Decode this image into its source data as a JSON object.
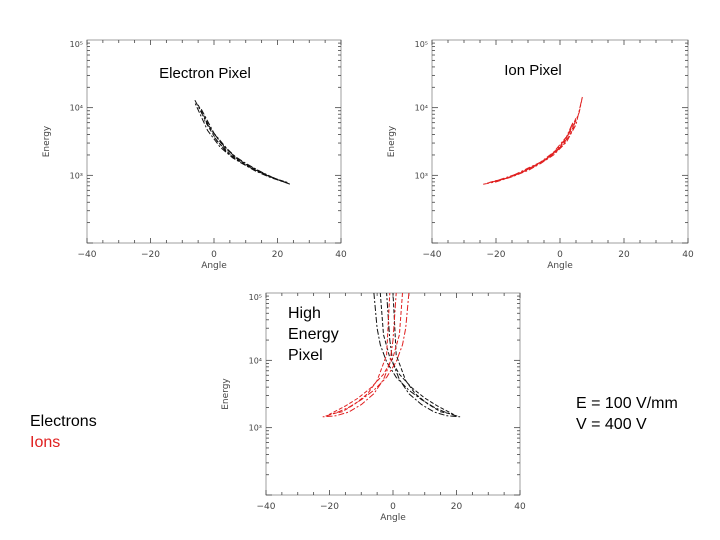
{
  "labels": {
    "electrons": "Electrons",
    "ions": "Ions",
    "field_line1": "E = 100 V/mm",
    "field_line2": "V = 400 V"
  },
  "colors": {
    "electron": "#111111",
    "ion": "#e02020",
    "axis": "#444444"
  },
  "chart_data": [
    {
      "id": "electron",
      "type": "line",
      "title": "Electron Pixel",
      "xlabel": "Angle",
      "ylabel": "Energy",
      "xlim": [
        -40,
        40
      ],
      "ylim": [
        100,
        100000
      ],
      "yscale": "log",
      "xticks": [
        "-40",
        "-20",
        "0",
        "20",
        "40"
      ],
      "yticks": [
        "10³",
        "10⁴",
        "10⁵"
      ],
      "series": [
        {
          "name": "Electrons",
          "color": "#111111",
          "x": [
            -6,
            -2,
            2,
            6,
            10,
            14,
            18,
            22,
            24,
            20,
            15,
            10,
            6,
            2,
            -2,
            -6
          ],
          "y": [
            12900,
            5600,
            3100,
            2000,
            1500,
            1180,
            950,
            800,
            740,
            860,
            1080,
            1400,
            1800,
            2600,
            4600,
            11800
          ]
        },
        {
          "name": "Electrons",
          "color": "#111111",
          "x": [
            -5,
            -1,
            3,
            7,
            11,
            16,
            21,
            23,
            19,
            14,
            9,
            5,
            1,
            -3
          ],
          "y": [
            11000,
            4800,
            2700,
            1800,
            1380,
            1050,
            830,
            790,
            900,
            1130,
            1500,
            2050,
            3200,
            6500
          ]
        },
        {
          "name": "Electrons",
          "color": "#111111",
          "x": [
            -4,
            0,
            4,
            8,
            12,
            17,
            22,
            18,
            13,
            8,
            4,
            0
          ],
          "y": [
            9500,
            4200,
            2500,
            1650,
            1280,
            980,
            800,
            920,
            1160,
            1580,
            2200,
            3700
          ]
        }
      ]
    },
    {
      "id": "ion",
      "type": "line",
      "title": "Ion Pixel",
      "xlabel": "Angle",
      "ylabel": "Energy",
      "xlim": [
        -40,
        40
      ],
      "ylim": [
        100,
        100000
      ],
      "yscale": "log",
      "xticks": [
        "-40",
        "-20",
        "0",
        "20",
        "40"
      ],
      "yticks": [
        "10³",
        "10⁴",
        "10⁵"
      ],
      "series": [
        {
          "name": "Ions",
          "color": "#e02020",
          "x": [
            -24,
            -20,
            -15,
            -10,
            -6,
            -2,
            2,
            5,
            6,
            7,
            6,
            4,
            0,
            -4,
            -9,
            -14,
            -19,
            -23
          ],
          "y": [
            740,
            800,
            950,
            1180,
            1500,
            2000,
            3100,
            5600,
            9000,
            14500,
            8500,
            5000,
            2700,
            1750,
            1280,
            1030,
            860,
            760
          ]
        },
        {
          "name": "Ions",
          "color": "#e02020",
          "x": [
            -22,
            -17,
            -12,
            -7,
            -3,
            1,
            4,
            5,
            3,
            0,
            -4,
            -8,
            -13,
            -18
          ],
          "y": [
            790,
            900,
            1100,
            1450,
            1900,
            2800,
            4700,
            7000,
            4300,
            2600,
            1800,
            1380,
            1050,
            870
          ]
        },
        {
          "name": "Ions",
          "color": "#e02020",
          "x": [
            -21,
            -16,
            -11,
            -6,
            -2,
            2,
            4,
            2,
            -1,
            -5,
            -10,
            -15
          ],
          "y": [
            800,
            920,
            1160,
            1580,
            2200,
            3700,
            6000,
            3400,
            2300,
            1650,
            1280,
            980
          ]
        }
      ]
    },
    {
      "id": "high-energy",
      "type": "line",
      "title": "High Energy Pixel",
      "title_lines": [
        "High",
        "Energy",
        "Pixel"
      ],
      "xlabel": "Angle",
      "ylabel": "Energy",
      "xlim": [
        -40,
        40
      ],
      "ylim": [
        100,
        100000
      ],
      "yscale": "log",
      "xticks": [
        "-40",
        "-20",
        "0",
        "20",
        "40"
      ],
      "yticks": [
        "10³",
        "10⁴",
        "10⁵"
      ],
      "series": [
        {
          "name": "Electrons",
          "color": "#111111",
          "x": [
            -6,
            -5,
            -4,
            -2,
            1,
            5,
            9,
            13,
            17,
            21,
            17,
            13,
            9,
            5,
            2,
            0,
            -1,
            -2
          ],
          "y": [
            100000,
            30000,
            17000,
            9500,
            5600,
            3600,
            2600,
            2000,
            1650,
            1450,
            1500,
            1700,
            2200,
            3200,
            5200,
            9000,
            20000,
            100000
          ]
        },
        {
          "name": "Electrons",
          "color": "#111111",
          "x": [
            -4,
            -3,
            -1,
            2,
            6,
            10,
            14,
            19,
            15,
            11,
            7,
            4,
            1,
            0
          ],
          "y": [
            100000,
            24000,
            11000,
            6200,
            3900,
            2750,
            2100,
            1580,
            1720,
            2250,
            3200,
            5000,
            12000,
            100000
          ]
        },
        {
          "name": "Ions",
          "color": "#e02020",
          "x": [
            5,
            4,
            3,
            1,
            -2,
            -6,
            -10,
            -14,
            -18,
            -22,
            -18,
            -14,
            -10,
            -6,
            -3,
            -1,
            0,
            1
          ],
          "y": [
            100000,
            30000,
            17000,
            9500,
            5600,
            3600,
            2600,
            2000,
            1650,
            1450,
            1500,
            1700,
            2200,
            3200,
            5200,
            9000,
            20000,
            100000
          ]
        },
        {
          "name": "Ions",
          "color": "#e02020",
          "x": [
            3,
            2,
            0,
            -3,
            -7,
            -11,
            -15,
            -20,
            -16,
            -12,
            -8,
            -5,
            -2,
            -1
          ],
          "y": [
            100000,
            24000,
            11000,
            6200,
            3900,
            2750,
            2100,
            1580,
            1720,
            2250,
            3200,
            5000,
            12000,
            100000
          ]
        }
      ]
    }
  ]
}
